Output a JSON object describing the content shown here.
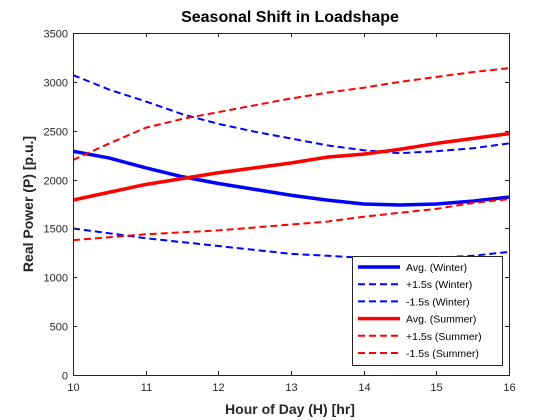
{
  "chart_data": {
    "type": "line",
    "title": "Seasonal Shift in Loadshape",
    "xlabel": "Hour of Day (H) [hr]",
    "ylabel": "Real Power (P) [p.u.]",
    "xlim": [
      10,
      16
    ],
    "ylim": [
      0,
      3500
    ],
    "xticks": [
      10,
      11,
      12,
      13,
      14,
      15,
      16
    ],
    "yticks": [
      0,
      500,
      1000,
      1500,
      2000,
      2500,
      3000,
      3500
    ],
    "grid": false,
    "legend_position": "bottom-right",
    "colors": {
      "winter": "#0000ff",
      "summer": "#ff0000",
      "axis": "#262626"
    },
    "x": [
      10,
      10.5,
      11,
      11.5,
      12,
      12.5,
      13,
      13.5,
      14,
      14.5,
      15,
      15.5,
      16
    ],
    "series": [
      {
        "name": "Avg. (Winter)",
        "color": "#0000ff",
        "style": "solid",
        "width": 3.5,
        "values": [
          2290,
          2220,
          2120,
          2030,
          1960,
          1900,
          1840,
          1790,
          1750,
          1740,
          1750,
          1780,
          1820
        ]
      },
      {
        "name": "+1.5s (Winter)",
        "color": "#0000ff",
        "style": "dashed",
        "width": 2,
        "values": [
          3070,
          2920,
          2800,
          2670,
          2570,
          2490,
          2420,
          2350,
          2300,
          2270,
          2290,
          2320,
          2370
        ]
      },
      {
        "name": "-1.5s (Winter)",
        "color": "#0000ff",
        "style": "dashed",
        "width": 2,
        "values": [
          1500,
          1450,
          1400,
          1360,
          1320,
          1280,
          1240,
          1220,
          1200,
          1200,
          1200,
          1220,
          1260
        ]
      },
      {
        "name": "Avg. (Summer)",
        "color": "#ff0000",
        "style": "solid",
        "width": 3.5,
        "values": [
          1790,
          1870,
          1950,
          2010,
          2070,
          2120,
          2170,
          2230,
          2260,
          2310,
          2370,
          2420,
          2470
        ]
      },
      {
        "name": "+1.5s (Summer)",
        "color": "#ff0000",
        "style": "dashed",
        "width": 2,
        "values": [
          2200,
          2370,
          2530,
          2620,
          2690,
          2760,
          2830,
          2890,
          2940,
          3000,
          3050,
          3100,
          3140
        ]
      },
      {
        "name": "-1.5s (Summer)",
        "color": "#ff0000",
        "style": "dashed",
        "width": 2,
        "values": [
          1380,
          1410,
          1440,
          1460,
          1480,
          1510,
          1540,
          1570,
          1620,
          1660,
          1700,
          1760,
          1800
        ]
      }
    ]
  }
}
